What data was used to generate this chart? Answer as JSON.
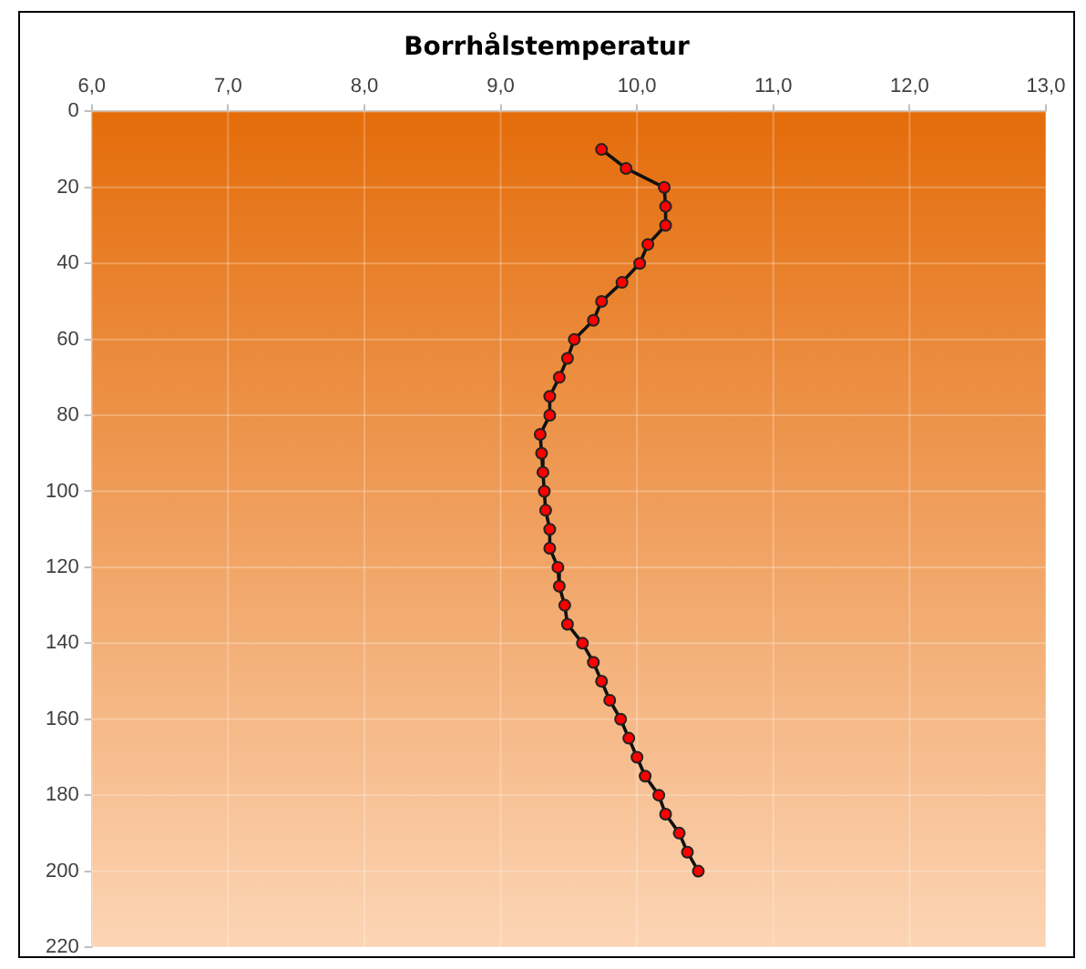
{
  "chart_data": {
    "type": "line",
    "title": "Borrhålstemperatur",
    "x": [
      9.74,
      9.92,
      10.2,
      10.21,
      10.21,
      10.08,
      10.02,
      9.89,
      9.74,
      9.68,
      9.54,
      9.49,
      9.43,
      9.36,
      9.36,
      9.29,
      9.3,
      9.31,
      9.32,
      9.33,
      9.36,
      9.36,
      9.42,
      9.43,
      9.47,
      9.49,
      9.6,
      9.68,
      9.74,
      9.8,
      9.88,
      9.94,
      10.0,
      10.06,
      10.16,
      10.21,
      10.31,
      10.37,
      10.45
    ],
    "series": [
      {
        "color": "#ff0000",
        "values": [
          10,
          15,
          20,
          25,
          30,
          35,
          40,
          45,
          50,
          55,
          60,
          65,
          70,
          75,
          80,
          85,
          90,
          95,
          100,
          105,
          110,
          115,
          120,
          125,
          130,
          135,
          140,
          145,
          150,
          155,
          160,
          165,
          170,
          175,
          180,
          185,
          190,
          195,
          200
        ]
      }
    ],
    "xlim": [
      6,
      13
    ],
    "xticks": [
      {
        "value": 6,
        "label": "6,0"
      },
      {
        "value": 7,
        "label": "7,0"
      },
      {
        "value": 8,
        "label": "8,0"
      },
      {
        "value": 9,
        "label": "9,0"
      },
      {
        "value": 10,
        "label": "10,0"
      },
      {
        "value": 11,
        "label": "11,0"
      },
      {
        "value": 12,
        "label": "12,0"
      },
      {
        "value": 13,
        "label": "13,0"
      }
    ],
    "ylim": [
      220,
      0
    ],
    "yticks": [
      0,
      20,
      40,
      60,
      80,
      100,
      120,
      140,
      160,
      180,
      200,
      220
    ],
    "grid": true,
    "marker": "circle",
    "line_style": "solid",
    "legend": false
  }
}
